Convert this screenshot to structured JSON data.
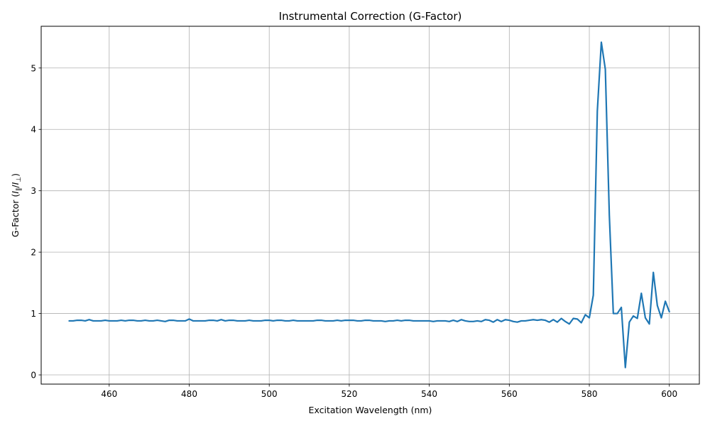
{
  "chart_data": {
    "type": "line",
    "title": "Instrumental Correction (G-Factor)",
    "xlabel": "Excitation Wavelength (nm)",
    "ylabel": {
      "prefix": "G-Factor (",
      "i1": "I",
      "sub1": "∥",
      "slash": "/",
      "i2": "I",
      "sub2": "⊥",
      "suffix": ")"
    },
    "xlim": [
      443,
      607.5
    ],
    "ylim": [
      -0.15,
      5.68
    ],
    "xticks": [
      460,
      480,
      500,
      520,
      540,
      560,
      580,
      600
    ],
    "yticks": [
      0,
      1,
      2,
      3,
      4,
      5
    ],
    "grid": true,
    "color": "#1f77b4",
    "series": [
      {
        "x": [
          450,
          451,
          452,
          453,
          454,
          455,
          456,
          457,
          458,
          459,
          460,
          461,
          462,
          463,
          464,
          465,
          466,
          467,
          468,
          469,
          470,
          471,
          472,
          473,
          474,
          475,
          476,
          477,
          478,
          479,
          480,
          481,
          482,
          483,
          484,
          485,
          486,
          487,
          488,
          489,
          490,
          491,
          492,
          493,
          494,
          495,
          496,
          497,
          498,
          499,
          500,
          501,
          502,
          503,
          504,
          505,
          506,
          507,
          508,
          509,
          510,
          511,
          512,
          513,
          514,
          515,
          516,
          517,
          518,
          519,
          520,
          521,
          522,
          523,
          524,
          525,
          526,
          527,
          528,
          529,
          530,
          531,
          532,
          533,
          534,
          535,
          536,
          537,
          538,
          539,
          540,
          541,
          542,
          543,
          544,
          545,
          546,
          547,
          548,
          549,
          550,
          551,
          552,
          553,
          554,
          555,
          556,
          557,
          558,
          559,
          560,
          561,
          562,
          563,
          564,
          565,
          566,
          567,
          568,
          569,
          570,
          571,
          572,
          573,
          574,
          575,
          576,
          577,
          578,
          579,
          580,
          581,
          582,
          583,
          584,
          585,
          586,
          587,
          588,
          589,
          590,
          591,
          592,
          593,
          594,
          595,
          596,
          597,
          598,
          599,
          600
        ],
        "y": [
          0.88,
          0.88,
          0.89,
          0.89,
          0.88,
          0.9,
          0.88,
          0.88,
          0.88,
          0.89,
          0.88,
          0.88,
          0.88,
          0.89,
          0.88,
          0.89,
          0.89,
          0.88,
          0.88,
          0.89,
          0.88,
          0.88,
          0.89,
          0.88,
          0.87,
          0.89,
          0.89,
          0.88,
          0.88,
          0.88,
          0.91,
          0.88,
          0.88,
          0.88,
          0.88,
          0.89,
          0.89,
          0.88,
          0.9,
          0.88,
          0.89,
          0.89,
          0.88,
          0.88,
          0.88,
          0.89,
          0.88,
          0.88,
          0.88,
          0.89,
          0.89,
          0.88,
          0.89,
          0.89,
          0.88,
          0.88,
          0.89,
          0.88,
          0.88,
          0.88,
          0.88,
          0.88,
          0.89,
          0.89,
          0.88,
          0.88,
          0.88,
          0.89,
          0.88,
          0.89,
          0.89,
          0.89,
          0.88,
          0.88,
          0.89,
          0.89,
          0.88,
          0.88,
          0.88,
          0.87,
          0.88,
          0.88,
          0.89,
          0.88,
          0.89,
          0.89,
          0.88,
          0.88,
          0.88,
          0.88,
          0.88,
          0.87,
          0.88,
          0.88,
          0.88,
          0.87,
          0.89,
          0.87,
          0.9,
          0.88,
          0.87,
          0.87,
          0.88,
          0.87,
          0.9,
          0.89,
          0.86,
          0.9,
          0.87,
          0.9,
          0.89,
          0.87,
          0.86,
          0.88,
          0.88,
          0.89,
          0.9,
          0.89,
          0.9,
          0.89,
          0.86,
          0.9,
          0.86,
          0.92,
          0.87,
          0.83,
          0.92,
          0.91,
          0.85,
          0.98,
          0.93,
          1.3,
          4.3,
          5.42,
          4.98,
          2.6,
          1.0,
          1.0,
          1.1,
          0.12,
          0.86,
          0.96,
          0.92,
          1.33,
          0.93,
          0.83,
          1.67,
          1.13,
          0.93,
          1.2,
          1.03
        ]
      }
    ]
  }
}
